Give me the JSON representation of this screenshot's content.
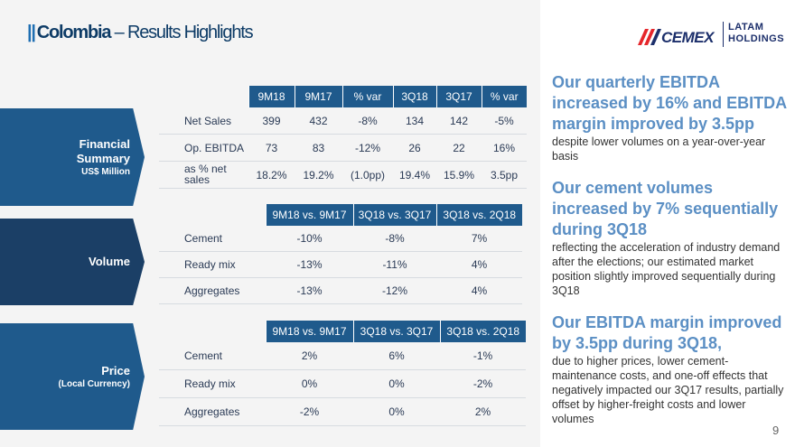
{
  "header": {
    "bars": "||",
    "title_bold": "Colombia",
    "title_rest": " – Results Highlights"
  },
  "logo": {
    "word": "CEMEX",
    "latam_line1": "LATAM",
    "latam_line2": "HOLDINGS",
    "colors": {
      "red": "#e5262b",
      "navy": "#1c2f6b"
    }
  },
  "side_labels": {
    "financial": {
      "title_line1": "Financial",
      "title_line2": "Summary",
      "subtitle": "US$ Million"
    },
    "volume": {
      "title": "Volume"
    },
    "price": {
      "title": "Price",
      "subtitle": "(Local Currency)"
    }
  },
  "financial_table": {
    "headers": [
      "9M18",
      "9M17",
      "% var",
      "3Q18",
      "3Q17",
      "% var"
    ],
    "rows": [
      {
        "label": "Net Sales",
        "values": [
          "399",
          "432",
          "-8%",
          "134",
          "142",
          "-5%"
        ]
      },
      {
        "label": "Op. EBITDA",
        "values": [
          "73",
          "83",
          "-12%",
          "26",
          "22",
          "16%"
        ]
      },
      {
        "label": "as % net sales",
        "values": [
          "18.2%",
          "19.2%",
          "(1.0pp)",
          "19.4%",
          "15.9%",
          "3.5pp"
        ]
      }
    ]
  },
  "volume_table": {
    "headers": [
      "9M18 vs. 9M17",
      "3Q18 vs. 3Q17",
      "3Q18 vs. 2Q18"
    ],
    "rows": [
      {
        "label": "Cement",
        "values": [
          "-10%",
          "-8%",
          "7%"
        ]
      },
      {
        "label": "Ready mix",
        "values": [
          "-13%",
          "-11%",
          "4%"
        ]
      },
      {
        "label": "Aggregates",
        "values": [
          "-13%",
          "-12%",
          "4%"
        ]
      }
    ]
  },
  "price_table": {
    "headers": [
      "9M18 vs. 9M17",
      "3Q18 vs. 3Q17",
      "3Q18 vs. 2Q18"
    ],
    "rows": [
      {
        "label": "Cement",
        "values": [
          "2%",
          "6%",
          "-1%"
        ]
      },
      {
        "label": "Ready mix",
        "values": [
          "0%",
          "0%",
          "-2%"
        ]
      },
      {
        "label": "Aggregates",
        "values": [
          "-2%",
          "0%",
          "2%"
        ]
      }
    ]
  },
  "highlights": [
    {
      "heading": "Our quarterly EBITDA increased by 16% and EBITDA margin improved by 3.5pp",
      "body": "despite lower volumes on a year-over-year basis"
    },
    {
      "heading": "Our cement volumes increased by 7% sequentially during 3Q18",
      "body": "reflecting the acceleration of industry demand after the elections; our estimated market position slightly improved sequentially during 3Q18"
    },
    {
      "heading": "Our EBITDA margin improved by 3.5pp during 3Q18,",
      "body": "due to higher prices, lower cement-maintenance costs, and one-off effects that negatively impacted our 3Q17 results, partially offset by higher-freight costs and lower volumes"
    }
  ],
  "page_number": "9",
  "colors": {
    "header_blue": "#1f5a8c",
    "volume_blue": "#1b3f66",
    "highlight_blue": "#5b8fc4"
  }
}
